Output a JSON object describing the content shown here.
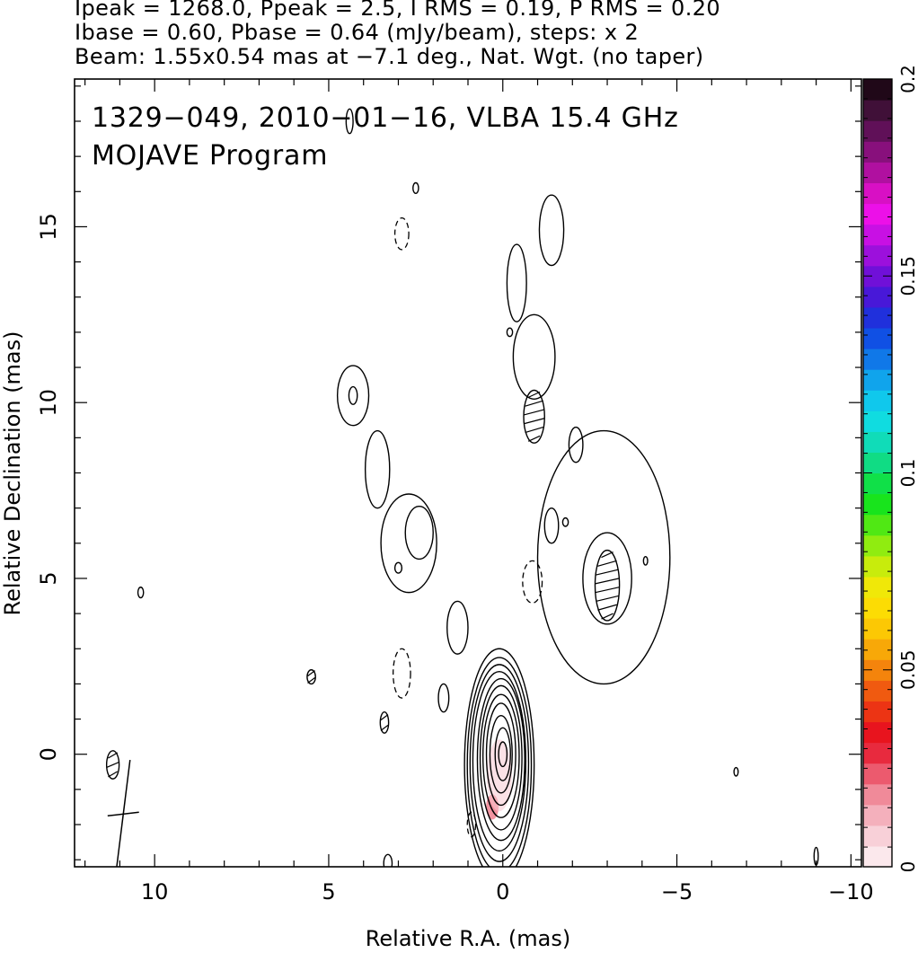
{
  "header": {
    "line1": "Ipeak = 1268.0, Ppeak = 2.5, I RMS = 0.19, P RMS = 0.20",
    "line2": "Ibase = 0.60, Pbase = 0.64 (mJy/beam), steps: x 2",
    "line3": "Beam: 1.55x0.54 mas at −7.1 deg., Nat. Wgt. (no taper)"
  },
  "chart_data": {
    "type": "contour",
    "title": "1329−049, 2010−01−16, VLBA 15.4 GHz",
    "subtitle": "MOJAVE Program",
    "xlabel": "Relative R.A. (mas)",
    "ylabel": "Relative Declination (mas)",
    "xlim": [
      12.3,
      -10.3
    ],
    "ylim": [
      -3.2,
      19.2
    ],
    "x_ticks": [
      10,
      5,
      0,
      -5,
      -10
    ],
    "x_tick_labels": [
      "10",
      "5",
      "0",
      "−5",
      "−10"
    ],
    "y_ticks": [
      0,
      5,
      10,
      15
    ],
    "y_tick_labels": [
      "0",
      "5",
      "10",
      "15"
    ],
    "peak_position": [
      0,
      0
    ],
    "beam": {
      "major_mas": 1.55,
      "minor_mas": 0.54,
      "pa_deg": -7.1,
      "center": [
        10.9,
        -1.7
      ]
    },
    "contour_levels_mJy_per_beam": [
      0.6,
      1.2,
      2.4,
      4.8,
      9.6,
      19.2,
      38.4,
      76.8,
      153.6,
      307.2,
      614.4,
      1228.8
    ],
    "core_contours": [
      {
        "x": 0.1,
        "y": -0.3,
        "rx": 1.0,
        "ry": 3.3
      },
      {
        "x": 0.1,
        "y": -0.3,
        "rx": 0.92,
        "ry": 3.05
      },
      {
        "x": 0.1,
        "y": -0.25,
        "rx": 0.84,
        "ry": 2.8
      },
      {
        "x": 0.1,
        "y": -0.2,
        "rx": 0.76,
        "ry": 2.55
      },
      {
        "x": 0.05,
        "y": -0.15,
        "rx": 0.68,
        "ry": 2.3
      },
      {
        "x": 0.05,
        "y": -0.1,
        "rx": 0.6,
        "ry": 2.05
      },
      {
        "x": 0.05,
        "y": -0.05,
        "rx": 0.52,
        "ry": 1.75
      },
      {
        "x": 0.05,
        "y": 0.0,
        "rx": 0.42,
        "ry": 1.45
      },
      {
        "x": 0.05,
        "y": 0.0,
        "rx": 0.32,
        "ry": 1.1
      },
      {
        "x": 0.0,
        "y": 0.0,
        "rx": 0.22,
        "ry": 0.75
      },
      {
        "x": 0.0,
        "y": 0.0,
        "rx": 0.12,
        "ry": 0.35
      }
    ],
    "jet_contours": [
      {
        "x": -1.4,
        "y": 14.9,
        "rx": 0.35,
        "ry": 1.0,
        "style": "solid"
      },
      {
        "x": -0.4,
        "y": 13.4,
        "rx": 0.28,
        "ry": 1.1,
        "style": "solid"
      },
      {
        "x": -0.2,
        "y": 12.0,
        "rx": 0.08,
        "ry": 0.12,
        "style": "solid"
      },
      {
        "x": -0.9,
        "y": 11.3,
        "rx": 0.6,
        "ry": 1.2,
        "style": "solid"
      },
      {
        "x": -0.9,
        "y": 9.6,
        "rx": 0.3,
        "ry": 0.75,
        "style": "hatched"
      },
      {
        "x": -2.1,
        "y": 8.8,
        "rx": 0.2,
        "ry": 0.5,
        "style": "solid"
      },
      {
        "x": 4.3,
        "y": 10.2,
        "rx": 0.45,
        "ry": 0.85,
        "style": "solid"
      },
      {
        "x": 4.3,
        "y": 10.2,
        "rx": 0.12,
        "ry": 0.25,
        "style": "solid"
      },
      {
        "x": 3.6,
        "y": 8.1,
        "rx": 0.35,
        "ry": 1.1,
        "style": "solid"
      },
      {
        "x": 2.7,
        "y": 6.0,
        "rx": 0.8,
        "ry": 1.4,
        "style": "solid"
      },
      {
        "x": 2.4,
        "y": 6.3,
        "rx": 0.4,
        "ry": 0.75,
        "style": "solid"
      },
      {
        "x": 3.0,
        "y": 5.3,
        "rx": 0.1,
        "ry": 0.15,
        "style": "solid"
      },
      {
        "x": 1.3,
        "y": 3.6,
        "rx": 0.3,
        "ry": 0.75,
        "style": "solid"
      },
      {
        "x": 1.7,
        "y": 1.6,
        "rx": 0.15,
        "ry": 0.4,
        "style": "solid"
      },
      {
        "x": -2.9,
        "y": 5.6,
        "rx": 1.9,
        "ry": 3.6,
        "style": "solid"
      },
      {
        "x": -3.0,
        "y": 5.0,
        "rx": 0.7,
        "ry": 1.3,
        "style": "solid"
      },
      {
        "x": -3.0,
        "y": 4.8,
        "rx": 0.35,
        "ry": 1.0,
        "style": "hatched"
      },
      {
        "x": -1.4,
        "y": 6.5,
        "rx": 0.2,
        "ry": 0.5,
        "style": "solid"
      },
      {
        "x": -1.8,
        "y": 6.6,
        "rx": 0.08,
        "ry": 0.12,
        "style": "solid"
      },
      {
        "x": 4.4,
        "y": 18.0,
        "rx": 0.1,
        "ry": 0.35,
        "style": "solid"
      },
      {
        "x": 2.5,
        "y": 16.1,
        "rx": 0.08,
        "ry": 0.15,
        "style": "solid"
      },
      {
        "x": 10.4,
        "y": 4.6,
        "rx": 0.08,
        "ry": 0.15,
        "style": "solid"
      },
      {
        "x": 5.5,
        "y": 2.2,
        "rx": 0.12,
        "ry": 0.2,
        "style": "hatched"
      },
      {
        "x": 3.4,
        "y": 0.9,
        "rx": 0.12,
        "ry": 0.3,
        "style": "hatched"
      },
      {
        "x": 3.3,
        "y": -3.1,
        "rx": 0.12,
        "ry": 0.25,
        "style": "solid"
      },
      {
        "x": 11.2,
        "y": -0.3,
        "rx": 0.18,
        "ry": 0.4,
        "style": "hatched"
      },
      {
        "x": -6.7,
        "y": -0.5,
        "rx": 0.06,
        "ry": 0.12,
        "style": "solid"
      },
      {
        "x": -9.0,
        "y": -2.9,
        "rx": 0.06,
        "ry": 0.25,
        "style": "solid"
      },
      {
        "x": -4.1,
        "y": 5.5,
        "rx": 0.06,
        "ry": 0.12,
        "style": "solid"
      }
    ],
    "negative_contours": [
      {
        "x": 2.9,
        "y": 14.8,
        "rx": 0.2,
        "ry": 0.45
      },
      {
        "x": 2.9,
        "y": 2.3,
        "rx": 0.25,
        "ry": 0.7
      },
      {
        "x": -0.85,
        "y": 4.9,
        "rx": 0.28,
        "ry": 0.6
      },
      {
        "x": 0.9,
        "y": -2.0,
        "rx": 0.12,
        "ry": 0.35
      }
    ],
    "colorbar": {
      "min": 0,
      "max": 0.2,
      "ticks": [
        0,
        0.05,
        0.1,
        0.15,
        0.2
      ],
      "tick_labels": [
        "0",
        "0.05",
        "0.1",
        "0.15",
        "0.2"
      ],
      "colors": [
        "#fbe8ec",
        "#f8d0d8",
        "#f4b0bc",
        "#f08a99",
        "#ec5a6e",
        "#e82a3e",
        "#e8141e",
        "#ec3414",
        "#f05a10",
        "#f4840c",
        "#f8a808",
        "#fcc804",
        "#fcdc04",
        "#f0e808",
        "#c8ec0c",
        "#90ec10",
        "#50e814",
        "#18e41c",
        "#10e048",
        "#10dc84",
        "#10dcb8",
        "#10dce0",
        "#10c8ec",
        "#10a4ec",
        "#1078e8",
        "#1050e4",
        "#2030dc",
        "#4818d8",
        "#7010d8",
        "#9c10dc",
        "#c810e4",
        "#ec10e8",
        "#d810c4",
        "#b010a0",
        "#88107c",
        "#601058",
        "#401038",
        "#200818"
      ]
    },
    "polarization_peak_marker": {
      "x": 0.3,
      "y": -1.5,
      "color": "#e83c54"
    },
    "grid": false
  }
}
